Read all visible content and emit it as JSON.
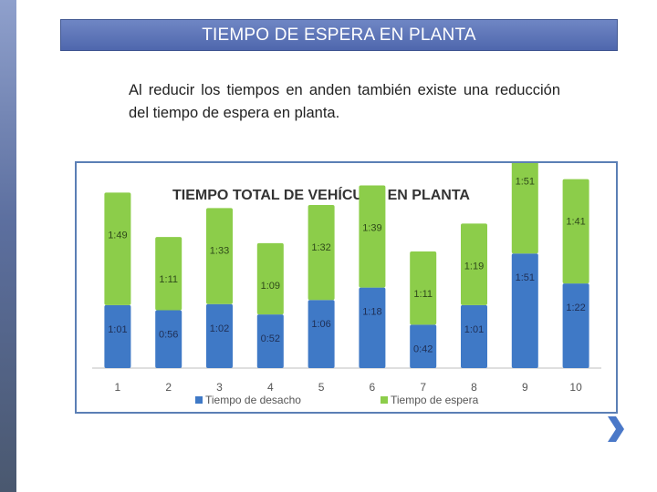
{
  "slide": {
    "title": "TIEMPO DE ESPERA EN PLANTA",
    "body": "Al reducir los tiempos en anden también existe una reducción del tiempo de espera en planta."
  },
  "nav": {
    "next_icon": "chevron-right-icon"
  },
  "colors": {
    "title_bar": "#4f67ad",
    "desacho": "#3f79c6",
    "espera": "#8ccd4a",
    "frame": "#5b7fb5"
  },
  "chart_data": {
    "type": "bar",
    "stacked": true,
    "title": "TIEMPO TOTAL DE VEHÍCULO EN PLANTA",
    "categories": [
      "1",
      "2",
      "3",
      "4",
      "5",
      "6",
      "7",
      "8",
      "9",
      "10"
    ],
    "series": [
      {
        "name": "Tiempo de desacho",
        "values": [
          61,
          56,
          62,
          52,
          66,
          78,
          42,
          61,
          111,
          82
        ],
        "labels": [
          "1:01",
          "0:56",
          "1:02",
          "0:52",
          "1:06",
          "1:18",
          "0:42",
          "1:01",
          "1:51",
          "1:22"
        ]
      },
      {
        "name": "Tiempo de espera",
        "values": [
          109,
          71,
          93,
          69,
          92,
          99,
          71,
          79,
          111,
          101
        ],
        "labels": [
          "1:49",
          "1:11",
          "1:33",
          "1:09",
          "1:32",
          "1:39",
          "1:11",
          "1:19",
          "1:51",
          "1:41"
        ]
      }
    ],
    "legend": "bottom",
    "grid": false
  }
}
